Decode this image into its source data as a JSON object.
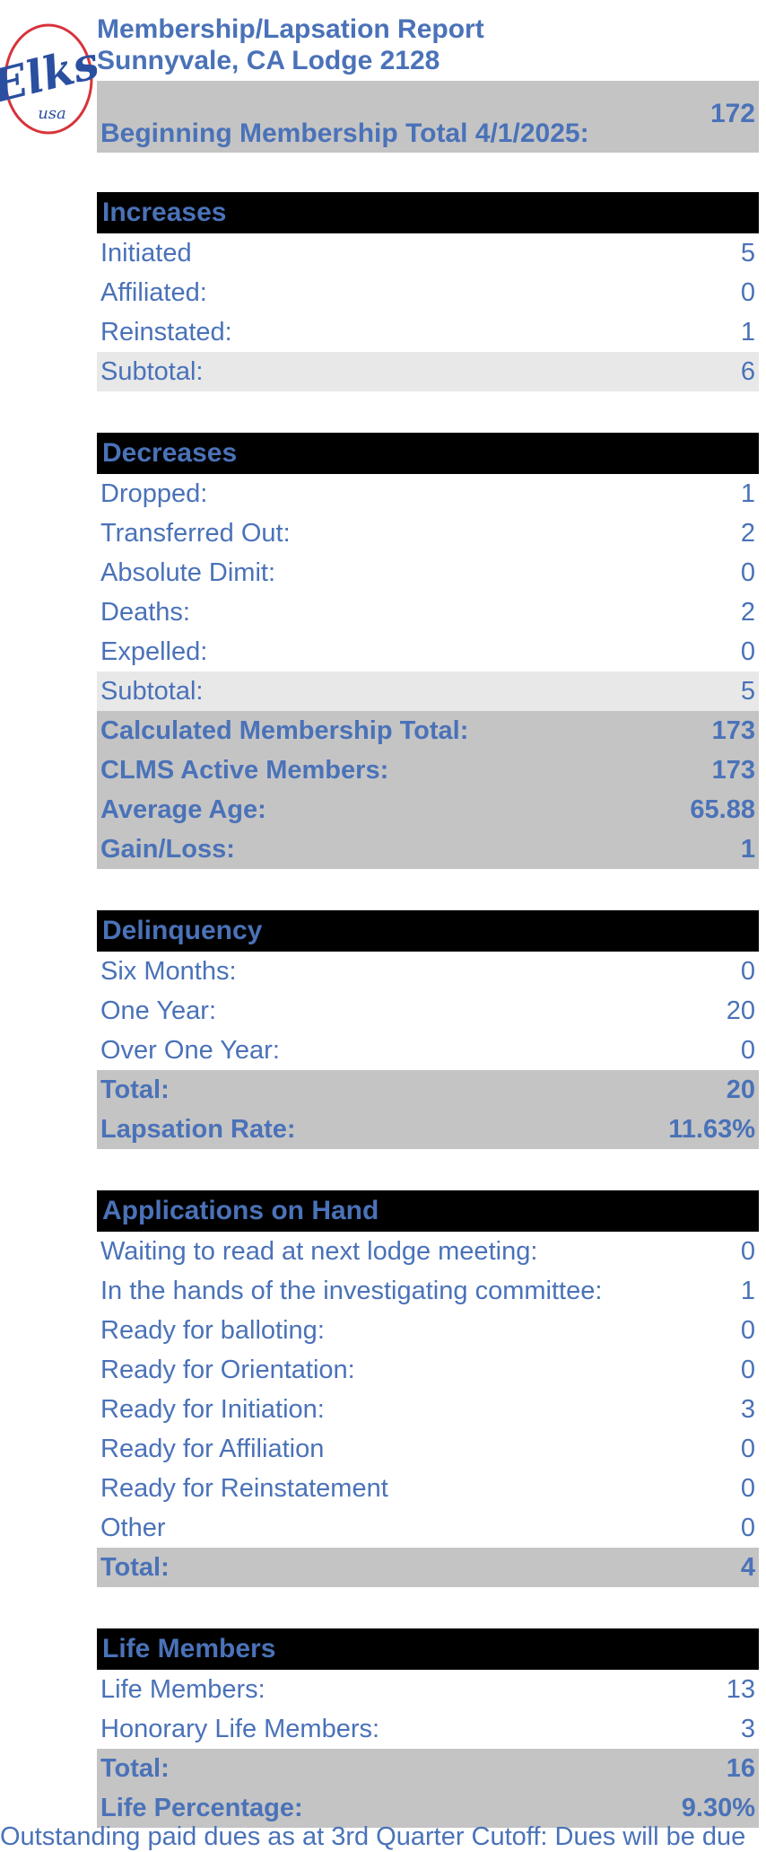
{
  "logo": {
    "text": "Elks",
    "subtext": "usa"
  },
  "header": {
    "title": "Membership/Lapsation Report",
    "lodge": "Sunnyvale, CA Lodge 2128",
    "beginning_label": "Beginning Membership Total 4/1/2025:",
    "beginning_value": "172"
  },
  "increases": {
    "title": "Increases",
    "rows": [
      {
        "label": "Initiated",
        "value": "5"
      },
      {
        "label": "Affiliated:",
        "value": "0"
      },
      {
        "label": "Reinstated:",
        "value": "1"
      }
    ],
    "subtotal": {
      "label": "Subtotal:",
      "value": "6"
    }
  },
  "decreases": {
    "title": "Decreases",
    "rows": [
      {
        "label": "Dropped:",
        "value": "1"
      },
      {
        "label": "Transferred Out:",
        "value": "2"
      },
      {
        "label": "Absolute Dimit:",
        "value": "0"
      },
      {
        "label": "Deaths:",
        "value": "2"
      },
      {
        "label": "Expelled:",
        "value": "0"
      }
    ],
    "subtotal": {
      "label": "Subtotal:",
      "value": "5"
    },
    "summary": [
      {
        "label": "Calculated Membership Total:",
        "value": "173"
      },
      {
        "label": "CLMS Active Members:",
        "value": "173"
      },
      {
        "label": "Average Age:",
        "value": "65.88"
      },
      {
        "label": "Gain/Loss:",
        "value": "1"
      }
    ]
  },
  "delinquency": {
    "title": "Delinquency",
    "rows": [
      {
        "label": "Six Months:",
        "value": "0"
      },
      {
        "label": "One Year:",
        "value": "20"
      },
      {
        "label": "Over One Year:",
        "value": "0"
      }
    ],
    "summary": [
      {
        "label": "Total:",
        "value": "20"
      },
      {
        "label": "Lapsation Rate:",
        "value": "11.63%"
      }
    ]
  },
  "applications": {
    "title": "Applications on Hand",
    "rows": [
      {
        "label": "Waiting to read at next lodge meeting:",
        "value": "0"
      },
      {
        "label": "In the hands of the investigating committee:",
        "value": "1"
      },
      {
        "label": "Ready for balloting:",
        "value": "0"
      },
      {
        "label": "Ready for Orientation:",
        "value": "0"
      },
      {
        "label": "Ready for Initiation:",
        "value": "3"
      },
      {
        "label": "Ready for Affiliation",
        "value": "0"
      },
      {
        "label": "Ready for Reinstatement",
        "value": "0"
      },
      {
        "label": "Other",
        "value": "0"
      }
    ],
    "summary": [
      {
        "label": "Total:",
        "value": "4"
      }
    ]
  },
  "life_members": {
    "title": "Life Members",
    "rows": [
      {
        "label": "Life Members:",
        "value": "13"
      },
      {
        "label": "Honorary Life Members:",
        "value": "3"
      }
    ],
    "summary": [
      {
        "label": "Total:",
        "value": "16"
      },
      {
        "label": "Life Percentage:",
        "value": "9.30%"
      }
    ]
  },
  "footer": {
    "text": "Outstanding paid dues as at 3rd Quarter Cutoff: Dues will be due"
  },
  "colors": {
    "text": "#4a72b8",
    "header_bg": "#000000",
    "summary_bg": "#c4c4c4",
    "subtotal_bg": "#e8e8e8",
    "logo_red": "#d8333a",
    "logo_blue": "#2a4fa0"
  }
}
